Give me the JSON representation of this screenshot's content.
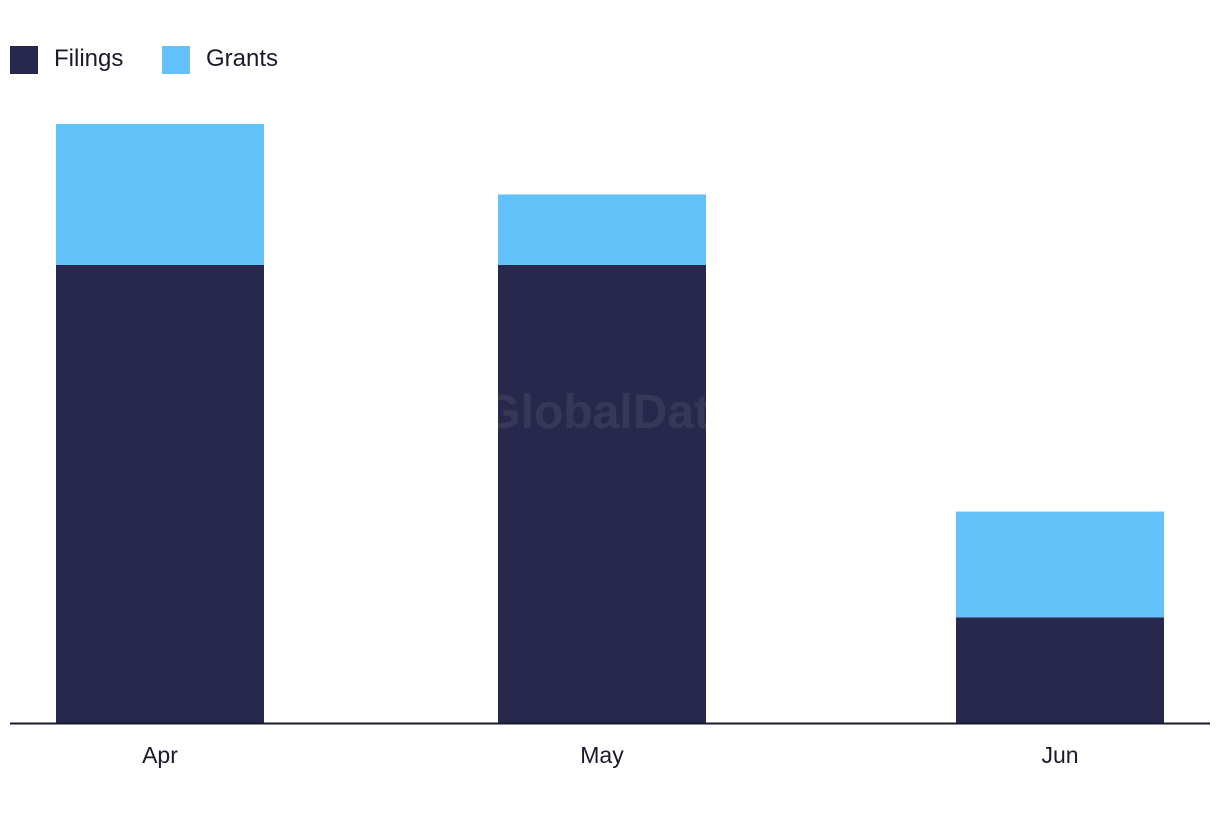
{
  "chart_data": {
    "type": "bar",
    "stacked": true,
    "categories": [
      "Apr",
      "May",
      "Jun"
    ],
    "series": [
      {
        "name": "Filings",
        "color": "#27284b",
        "values": [
          13,
          13,
          3
        ]
      },
      {
        "name": "Grants",
        "color": "#62c1f9",
        "values": [
          4,
          2,
          3
        ]
      }
    ],
    "title": "",
    "xlabel": "",
    "ylabel": "",
    "ylim": [
      0,
      17
    ],
    "grid": false,
    "legend_position": "top-left",
    "watermark": "GlobalData"
  }
}
